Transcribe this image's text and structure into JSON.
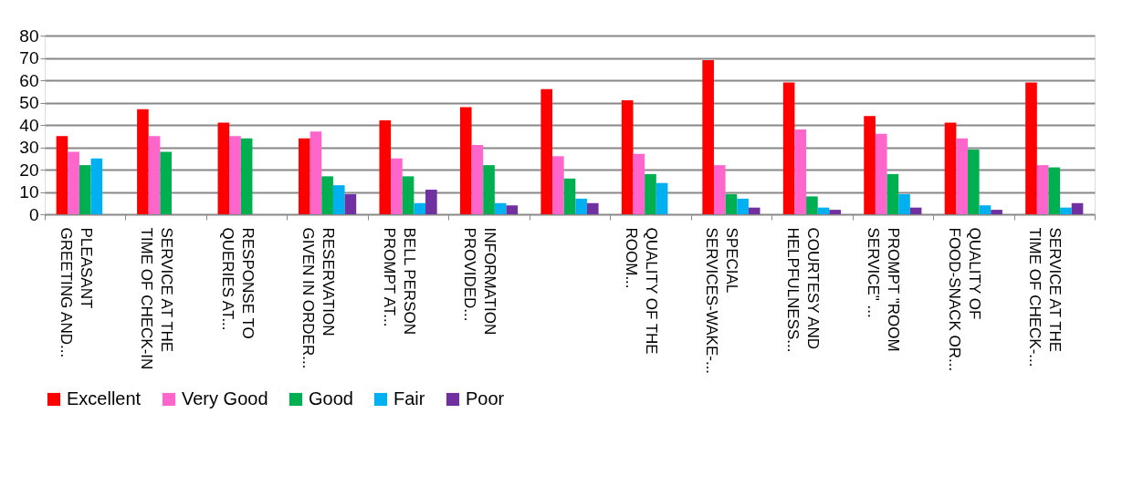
{
  "chart_data": {
    "type": "bar",
    "categories": [
      "PLEASANT\nGREETING AND...",
      "SERVICE AT THE\nTIME OF CHECK-IN",
      "RESPONSE TO\nQUERIES AT...",
      "RESERVATION\nGIVEN IN ORDER...",
      "BELL PERSON\nPROMPT AT...",
      "INFORMATION\nPROVIDED...",
      null,
      "QUALITY OF THE\nROOM...",
      "SPECIAL\nSERVICES-WAKE-...",
      "COURTESY AND\nHELPFULNESS...",
      "PROMPT \"ROOM\nSERVICE\" ...",
      "QUALITY OF\nFOOD-SNACK OR...",
      "SERVICE AT THE\nTIME OF CHECK-..."
    ],
    "series": [
      {
        "name": "Excellent",
        "color": "#ff0000",
        "values": [
          35,
          47,
          41,
          34,
          42,
          48,
          56,
          51,
          69,
          59,
          44,
          41,
          59
        ]
      },
      {
        "name": "Very Good",
        "color": "#ff66cc",
        "values": [
          28,
          35,
          35,
          37,
          25,
          31,
          26,
          27,
          22,
          38,
          36,
          34,
          22
        ]
      },
      {
        "name": "Good",
        "color": "#00b050",
        "values": [
          22,
          28,
          34,
          17,
          17,
          22,
          16,
          18,
          9,
          8,
          18,
          29,
          21
        ]
      },
      {
        "name": "Fair",
        "color": "#00b0f0",
        "values": [
          25,
          null,
          null,
          13,
          5,
          5,
          7,
          14,
          7,
          3,
          9,
          4,
          3
        ]
      },
      {
        "name": "Poor",
        "color": "#7030a0",
        "values": [
          null,
          null,
          null,
          9,
          11,
          4,
          5,
          null,
          3,
          2,
          3,
          2,
          5
        ]
      }
    ],
    "ylim": [
      0,
      80
    ],
    "yticks": [
      0,
      10,
      20,
      30,
      40,
      50,
      60,
      70,
      80
    ],
    "grid": "y",
    "legend": "bottom"
  }
}
